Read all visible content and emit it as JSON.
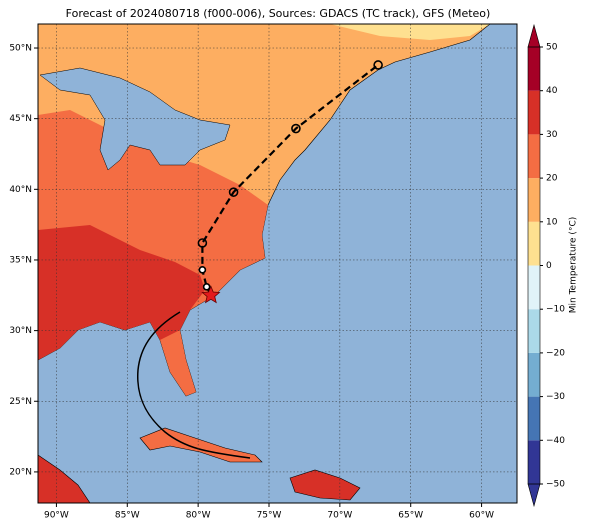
{
  "chart_data": {
    "type": "map",
    "title": "Forecast of 2024080718 (f000-006), Sources: GDACS (TC track), GFS (Meteo)",
    "xlim": [
      -91.3,
      -57.5
    ],
    "ylim": [
      17.8,
      51.7
    ],
    "xticks": [
      {
        "value": -90,
        "label": "90°W"
      },
      {
        "value": -85,
        "label": "85°W"
      },
      {
        "value": -80,
        "label": "80°W"
      },
      {
        "value": -75,
        "label": "75°W"
      },
      {
        "value": -70,
        "label": "70°W"
      },
      {
        "value": -65,
        "label": "65°W"
      },
      {
        "value": -60,
        "label": "60°W"
      }
    ],
    "yticks": [
      {
        "value": 20,
        "label": "20°N"
      },
      {
        "value": 25,
        "label": "25°N"
      },
      {
        "value": 30,
        "label": "30°N"
      },
      {
        "value": 35,
        "label": "35°N"
      },
      {
        "value": 40,
        "label": "40°N"
      },
      {
        "value": 45,
        "label": "45°N"
      },
      {
        "value": 50,
        "label": "50°N"
      }
    ],
    "grid": true,
    "colorbar": {
      "label": "Min Temperature (°C)",
      "lim": [
        -50,
        50
      ],
      "ticks": [
        {
          "value": -50,
          "label": "−50"
        },
        {
          "value": -40,
          "label": "−40"
        },
        {
          "value": -30,
          "label": "−30"
        },
        {
          "value": -20,
          "label": "−20"
        },
        {
          "value": -10,
          "label": "−10"
        },
        0,
        10,
        20,
        30,
        40,
        50
      ],
      "colors": [
        "#313695",
        "#4575b4",
        "#74add1",
        "#abd9e9",
        "#e0f3f8",
        "#fee090",
        "#fdae61",
        "#f46d43",
        "#d73027",
        "#a50026"
      ]
    },
    "track": {
      "lon": [
        -79.1,
        -79.4,
        -79.7,
        -79.7,
        -77.5,
        -73.1,
        -67.3
      ],
      "lat": [
        32.5,
        33.1,
        34.3,
        36.2,
        39.8,
        44.3,
        48.8
      ]
    }
  }
}
